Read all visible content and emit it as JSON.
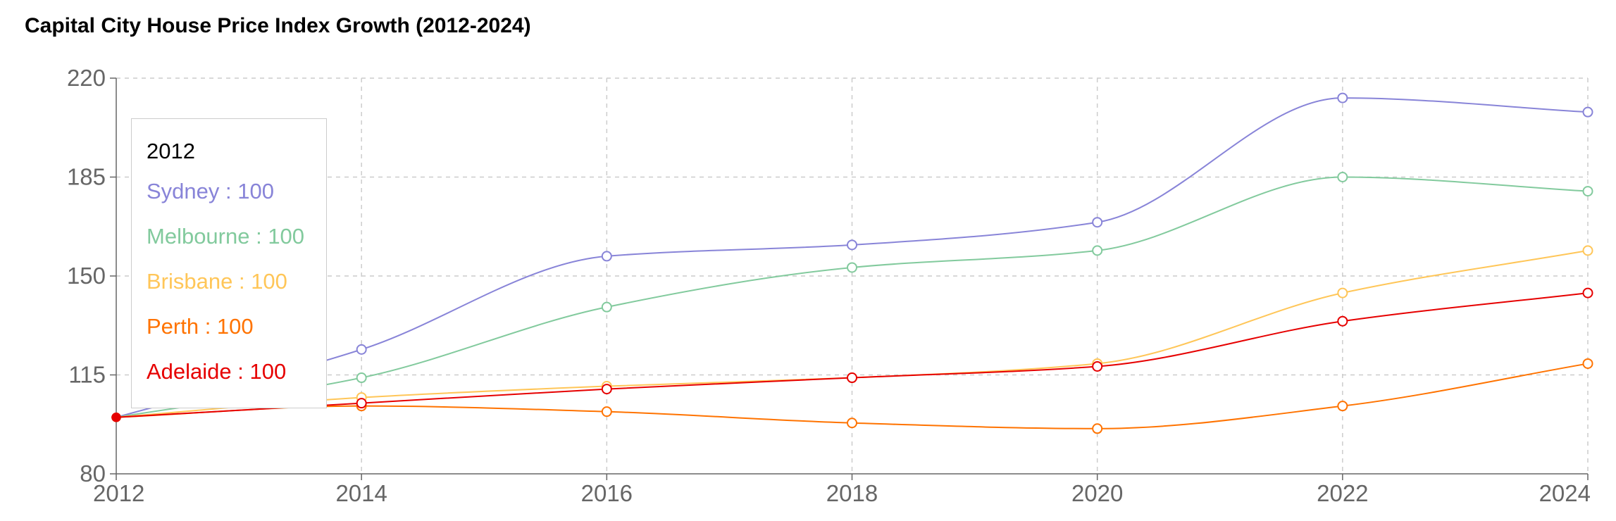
{
  "chart_data": {
    "type": "line",
    "title": "Capital City House Price Index Growth (2012-2024)",
    "x": [
      2012,
      2014,
      2016,
      2018,
      2020,
      2022,
      2024
    ],
    "ylim": [
      80,
      220
    ],
    "yticks": [
      80,
      115,
      150,
      185,
      220
    ],
    "grid": true,
    "series": [
      {
        "name": "Sydney",
        "color": "#8884d8",
        "values": [
          100,
          124,
          157,
          161,
          169,
          213,
          208
        ]
      },
      {
        "name": "Melbourne",
        "color": "#82ca9d",
        "values": [
          100,
          114,
          139,
          153,
          159,
          185,
          180
        ]
      },
      {
        "name": "Brisbane",
        "color": "#ffc658",
        "values": [
          100,
          107,
          111,
          114,
          119,
          144,
          159
        ]
      },
      {
        "name": "Perth",
        "color": "#ff7300",
        "values": [
          100,
          104,
          102,
          98,
          96,
          104,
          119
        ]
      },
      {
        "name": "Adelaide",
        "color": "#e60000",
        "values": [
          100,
          105,
          110,
          114,
          118,
          134,
          144
        ]
      }
    ],
    "tooltip": {
      "title": "2012",
      "items": [
        "Sydney : 100",
        "Melbourne : 100",
        "Brisbane : 100",
        "Perth : 100",
        "Adelaide : 100"
      ]
    }
  }
}
